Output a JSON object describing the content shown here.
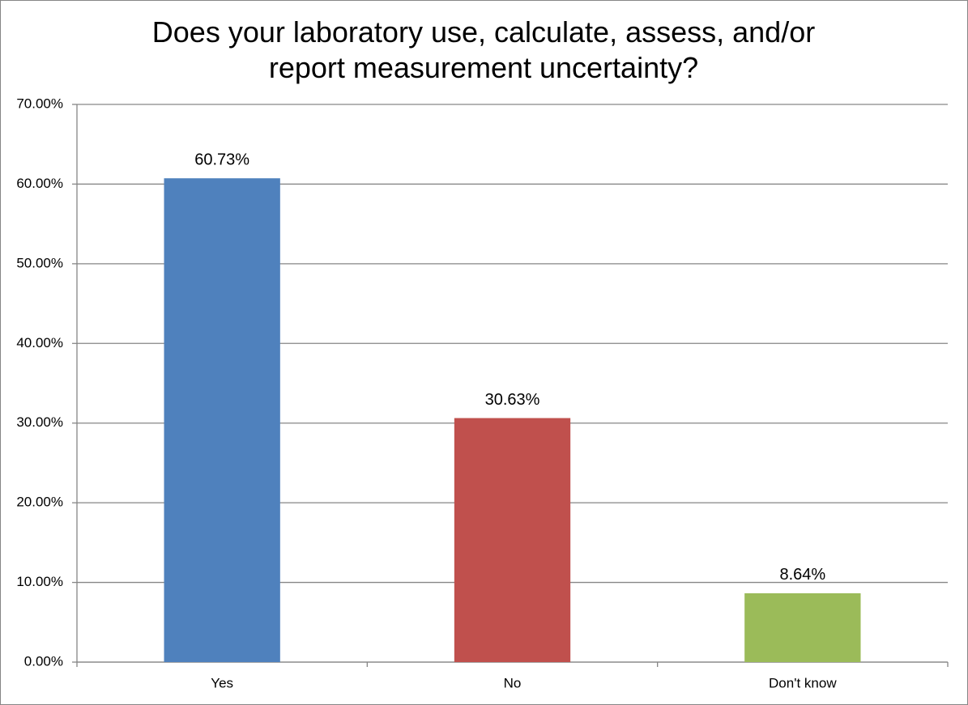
{
  "chart_data": {
    "type": "bar",
    "title": "Does your laboratory use, calculate, assess, and/or report measurement uncertainty?",
    "categories": [
      "Yes",
      "No",
      "Don't know"
    ],
    "values": [
      60.73,
      30.63,
      8.64
    ],
    "value_labels": [
      "60.73%",
      "30.63%",
      "8.64%"
    ],
    "colors": [
      "#4f81bd",
      "#c0504d",
      "#9bbb59"
    ],
    "ylim": [
      0,
      70
    ],
    "yticks": [
      {
        "value": 0,
        "label": "0.00%"
      },
      {
        "value": 10,
        "label": "10.00%"
      },
      {
        "value": 20,
        "label": "20.00%"
      },
      {
        "value": 30,
        "label": "30.00%"
      },
      {
        "value": 40,
        "label": "40.00%"
      },
      {
        "value": 50,
        "label": "50.00%"
      },
      {
        "value": 60,
        "label": "60.00%"
      },
      {
        "value": 70,
        "label": "70.00%"
      }
    ],
    "grid": true
  }
}
